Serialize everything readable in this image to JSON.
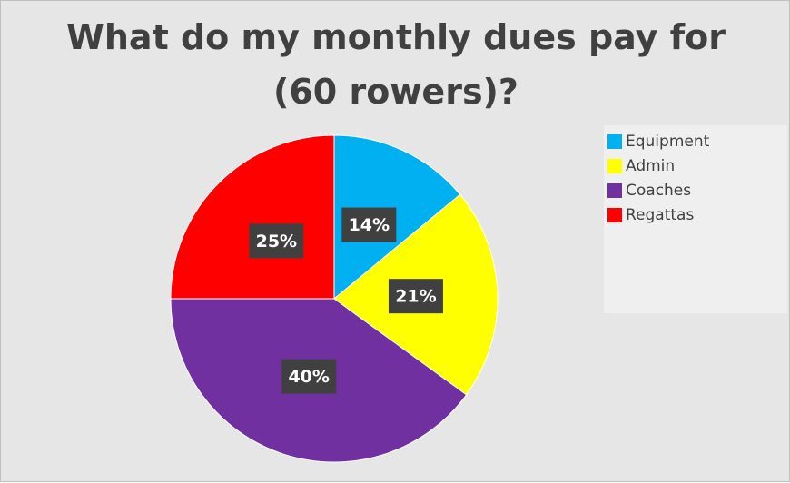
{
  "chart_data": {
    "type": "pie",
    "title": "What do my monthly dues pay for (60 rowers)?",
    "categories": [
      "Equipment",
      "Admin",
      "Coaches",
      "Regattas"
    ],
    "values": [
      14,
      21,
      40,
      25
    ],
    "value_labels": [
      "14%",
      "21%",
      "40%",
      "25%"
    ],
    "colors": [
      "#00b0f0",
      "#ffff00",
      "#7030a0",
      "#ff0000"
    ],
    "legend": "right"
  }
}
